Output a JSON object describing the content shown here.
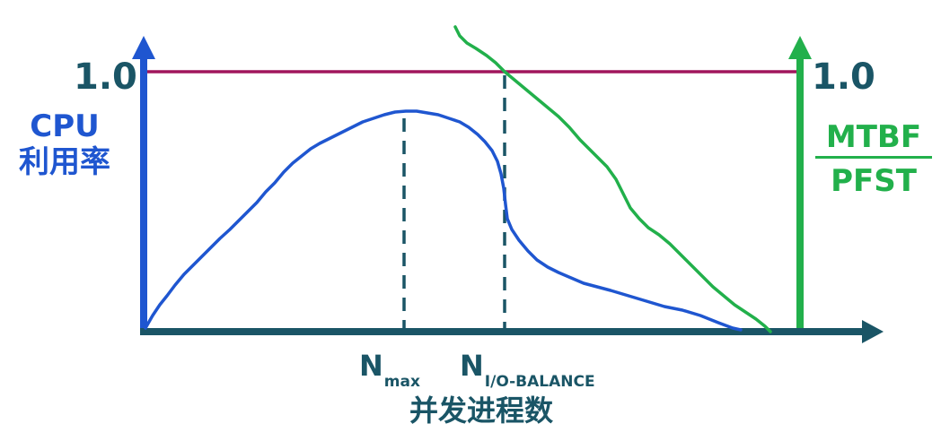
{
  "labels": {
    "left_max": "1.0",
    "right_max": "1.0",
    "cpu_line1": "CPU",
    "cpu_line2": "利用率",
    "ratio_numerator": "MTBF",
    "ratio_denominator": "PFST",
    "nmax_main": "N",
    "nmax_sub": "max",
    "nio_main": "N",
    "nio_sub": "I/O-BALANCE",
    "x_axis": "并发进程数"
  },
  "colors": {
    "cpu_axis": "#1f56d0",
    "cpu_curve": "#1f56d0",
    "ratio_axis": "#22b04b",
    "ratio_curve": "#22b04b",
    "x_axis": "#1a5566",
    "limit_line": "#a0165c",
    "dashed": "#1a5566"
  }
}
